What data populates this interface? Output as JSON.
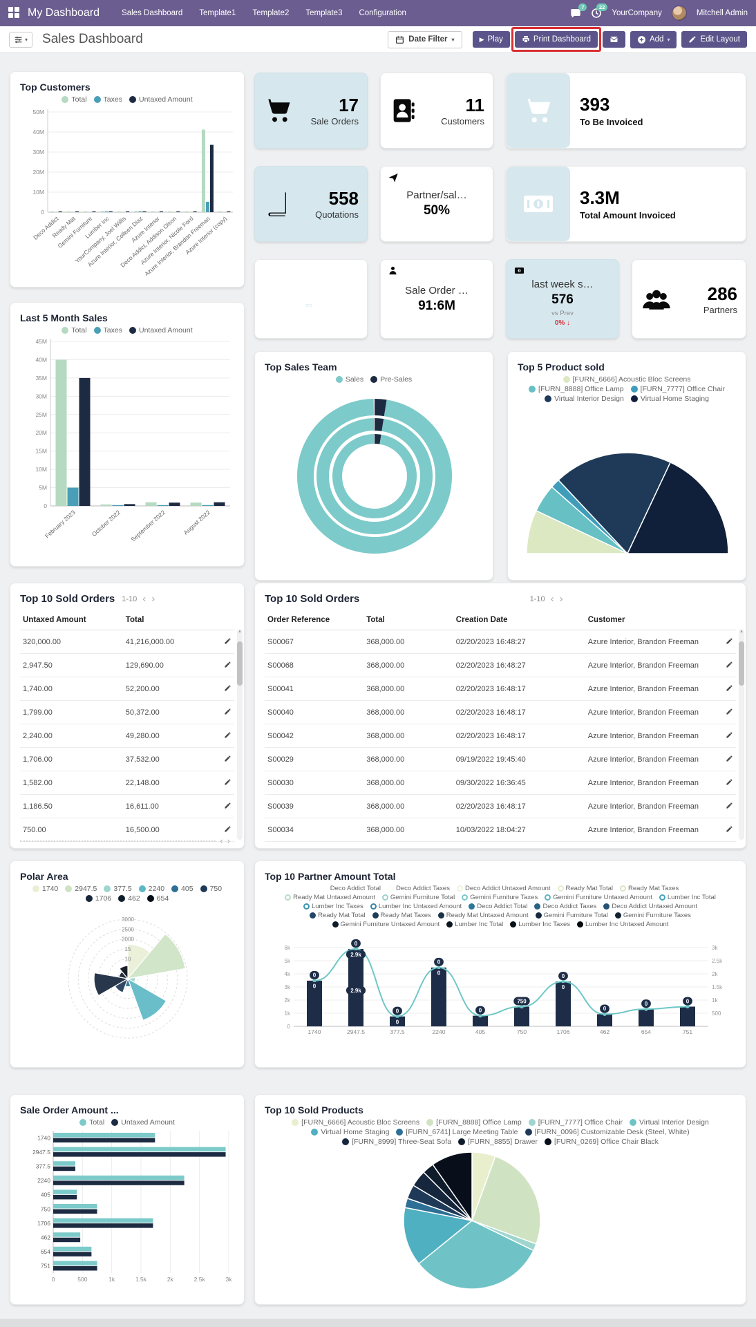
{
  "navbar": {
    "app_title": "My Dashboard",
    "menu_items": [
      "Sales Dashboard",
      "Template1",
      "Template2",
      "Template3",
      "Configuration"
    ],
    "messages_badge": "7",
    "activities_badge": "22",
    "company": "YourCompany",
    "user": "Mitchell Admin"
  },
  "control_bar": {
    "title": "Sales Dashboard",
    "date_filter_label": "Date Filter",
    "play_label": "Play",
    "print_label": "Print Dashboard",
    "add_label": "Add",
    "edit_layout_label": "Edit Layout",
    "annotation_color": "#da2f34"
  },
  "kpis": {
    "sale_orders": {
      "value": "17",
      "label": "Sale Orders",
      "icon": "cart-icon"
    },
    "customers": {
      "value": "11",
      "label": "Customers",
      "icon": "address-book-icon"
    },
    "to_be_invoiced": {
      "value": "393",
      "label": "To Be Invoiced",
      "icon": "cart-icon"
    },
    "quotations": {
      "value": "558",
      "label": "Quotations",
      "icon": "book-icon"
    },
    "partner_ratio": {
      "title": "Partner/sal…",
      "value": "50%",
      "icon": "send-icon"
    },
    "total_invoiced": {
      "value": "3.3M",
      "label": "Total Amount Invoiced",
      "icon": "money-icon"
    },
    "sale_order_avg": {
      "title": "Sale Order …",
      "value": "91:6M",
      "icon": "person-icon"
    },
    "last_week": {
      "title": "last week s…",
      "value": "576",
      "sub": "vs Prev",
      "delta": "0%",
      "delta_dir": "down",
      "icon": "money-icon"
    },
    "partners": {
      "value": "286",
      "label": "Partners",
      "icon": "people-icon"
    }
  },
  "tables": {
    "left": {
      "title": "Top 10 Sold Orders",
      "pagination": "1-10",
      "columns": [
        "Untaxed Amount",
        "Total"
      ],
      "rows": [
        [
          "320,000.00",
          "41,216,000.00"
        ],
        [
          "2,947.50",
          "129,690.00"
        ],
        [
          "1,740.00",
          "52,200.00"
        ],
        [
          "1,799.00",
          "50,372.00"
        ],
        [
          "2,240.00",
          "49,280.00"
        ],
        [
          "1,706.00",
          "37,532.00"
        ],
        [
          "1,582.00",
          "22,148.00"
        ],
        [
          "1,186.50",
          "16,611.00"
        ],
        [
          "750.00",
          "16,500.00"
        ]
      ]
    },
    "right": {
      "title": "Top 10 Sold Orders",
      "pagination": "1-10",
      "columns": [
        "Order Reference",
        "Total",
        "Creation Date",
        "Customer"
      ],
      "rows": [
        [
          "S00067",
          "368,000.00",
          "02/20/2023 16:48:27",
          "Azure Interior, Brandon Freeman"
        ],
        [
          "S00068",
          "368,000.00",
          "02/20/2023 16:48:27",
          "Azure Interior, Brandon Freeman"
        ],
        [
          "S00041",
          "368,000.00",
          "02/20/2023 16:48:17",
          "Azure Interior, Brandon Freeman"
        ],
        [
          "S00040",
          "368,000.00",
          "02/20/2023 16:48:17",
          "Azure Interior, Brandon Freeman"
        ],
        [
          "S00042",
          "368,000.00",
          "02/20/2023 16:48:17",
          "Azure Interior, Brandon Freeman"
        ],
        [
          "S00029",
          "368,000.00",
          "09/19/2022 19:45:40",
          "Azure Interior, Brandon Freeman"
        ],
        [
          "S00030",
          "368,000.00",
          "09/30/2022 16:36:45",
          "Azure Interior, Brandon Freeman"
        ],
        [
          "S00039",
          "368,000.00",
          "02/20/2023 16:48:17",
          "Azure Interior, Brandon Freeman"
        ],
        [
          "S00034",
          "368,000.00",
          "10/03/2022 18:04:27",
          "Azure Interior, Brandon Freeman"
        ]
      ]
    }
  },
  "chart_data": {
    "top_customers": {
      "type": "bar",
      "title": "Top Customers",
      "categories": [
        "Deco Addict",
        "Ready Mat",
        "Gemini Furniture",
        "Lumber Inc",
        "YourCompany, Joel Willis",
        "Azure Interior, Colleen Diaz",
        "Azure Interior",
        "Deco Addict, Addison Olson",
        "Azure Interior, Nicole Ford",
        "Azure Interior, Brandon Freeman",
        "Azure Interior (copy)"
      ],
      "series": [
        {
          "name": "Total",
          "color": "#b5d9c1",
          "values": [
            0.2,
            0.2,
            0.3,
            0.6,
            0.2,
            0.6,
            0.2,
            0.2,
            0.3,
            41.2,
            0.2
          ]
        },
        {
          "name": "Taxes",
          "color": "#4a9fb8",
          "values": [
            0,
            0,
            0,
            0.1,
            0,
            0.1,
            0,
            0,
            0,
            5.2,
            0
          ]
        },
        {
          "name": "Untaxed Amount",
          "color": "#1d2b42",
          "values": [
            0.1,
            0.1,
            0.2,
            0.4,
            0.1,
            0.4,
            0.1,
            0.1,
            0.2,
            33.6,
            0.1
          ]
        }
      ],
      "ymax": 50,
      "yticks": [
        "0",
        "10M",
        "20M",
        "30M",
        "40M",
        "50M"
      ],
      "unit": "M"
    },
    "last_5_month_sales": {
      "type": "bar",
      "title": "Last 5 Month Sales",
      "categories": [
        "February 2023",
        "October 2022",
        "September 2022",
        "August 2022"
      ],
      "series": [
        {
          "name": "Total",
          "color": "#b5d9c1",
          "values": [
            40,
            0.4,
            1.0,
            0.9
          ]
        },
        {
          "name": "Taxes",
          "color": "#4a9fb8",
          "values": [
            5,
            0.05,
            0.15,
            0.1
          ]
        },
        {
          "name": "Untaxed Amount",
          "color": "#1d2b42",
          "values": [
            35,
            0.5,
            0.9,
            1.0
          ]
        }
      ],
      "ymax": 45,
      "yticks": [
        "0",
        "5M",
        "10M",
        "15M",
        "20M",
        "25M",
        "30M",
        "35M",
        "40M",
        "45M"
      ],
      "unit": "M"
    },
    "top_sales_team": {
      "type": "doughnut",
      "title": "Top Sales Team",
      "labels": [
        "Sales",
        "Pre-Sales"
      ],
      "values": [
        97.5,
        2.5
      ],
      "colors": [
        "#7dcaca",
        "#1d2b42"
      ]
    },
    "top_5_product_sold": {
      "type": "pie-half",
      "title": "Top 5 Product sold",
      "labels": [
        "[FURN_6666] Acoustic Bloc Screens",
        "[FURN_8888] Office Lamp",
        "[FURN_7777] Office Chair",
        "Virtual Interior Design",
        "Virtual Home Staging"
      ],
      "values": [
        14,
        9,
        3,
        38,
        36
      ],
      "colors": [
        "#dce8c2",
        "#66c0c4",
        "#3f9dba",
        "#1f3a58",
        "#10203a"
      ]
    },
    "polar_area": {
      "type": "polarArea",
      "title": "Polar Area",
      "labels": [
        "1740",
        "2947.5",
        "377.5",
        "2240",
        "405",
        "750",
        "1706",
        "462",
        "654"
      ],
      "values": [
        1740,
        2947.5,
        377.5,
        2240,
        405,
        750,
        1706,
        462,
        654
      ],
      "colors": [
        "#e9efd5",
        "#cde3c4",
        "#9ed5cf",
        "#5cb8c6",
        "#2d6f95",
        "#1f3a58",
        "#16263c",
        "#0f1c2c",
        "#070d16"
      ],
      "rmax": 3000,
      "rticks": [
        "3000",
        "2500",
        "2000",
        "15",
        "10"
      ]
    },
    "partner_amount_total": {
      "type": "combo",
      "title": "Top 10 Partner Amount Total",
      "categories": [
        "1740",
        "2947.5",
        "377.5",
        "2240",
        "405",
        "750",
        "1706",
        "462",
        "654",
        "751"
      ],
      "bars": {
        "color": "#1e2d47",
        "values": [
          3480,
          5895,
          755,
          4480,
          810,
          1500,
          3412,
          924,
          1308,
          1502
        ]
      },
      "line": {
        "color": "#6fc7c7",
        "values": [
          1740,
          2947.5,
          377.5,
          2240,
          405,
          750,
          1706,
          462,
          654,
          751
        ]
      },
      "bar_labels": [
        [
          "0",
          "0"
        ],
        [
          "0",
          "2.9k",
          "2.9k"
        ],
        [
          "0",
          "0"
        ],
        [
          "0",
          "0"
        ],
        [
          "0"
        ],
        [
          "750"
        ],
        [
          "0",
          "0"
        ],
        [
          "0"
        ],
        [
          "0"
        ],
        [
          "0"
        ]
      ],
      "left_max": 6000,
      "left_ticks": [
        {
          "v": 0,
          "l": "0"
        },
        {
          "v": 1000,
          "l": "1k"
        },
        {
          "v": 2000,
          "l": "2k"
        },
        {
          "v": 3000,
          "l": "3k"
        },
        {
          "v": 4000,
          "l": "4k"
        },
        {
          "v": 5000,
          "l": "5k"
        },
        {
          "v": 6000,
          "l": "6k"
        }
      ],
      "right_max": 3000,
      "right_ticks": [
        {
          "v": 500,
          "l": "500"
        },
        {
          "v": 1000,
          "l": "1k"
        },
        {
          "v": 1500,
          "l": "1.5k"
        },
        {
          "v": 2000,
          "l": "2k"
        },
        {
          "v": 2500,
          "l": "2.5k"
        },
        {
          "v": 3000,
          "l": "3k"
        }
      ],
      "legend": [
        {
          "label": "Deco Addict Total",
          "color": "#ffffff",
          "style": "none"
        },
        {
          "label": "Deco Addict Taxes",
          "color": "#fbfdf6",
          "style": "none"
        },
        {
          "label": "Deco Addict Untaxed Amount",
          "color": "#eef3d9",
          "style": "ring"
        },
        {
          "label": "Ready Mat Total",
          "color": "#e3ecce",
          "style": "ring"
        },
        {
          "label": "Ready Mat Taxes",
          "color": "#d6e5c6",
          "style": "ring"
        },
        {
          "label": "Ready Mat Untaxed Amount",
          "color": "#b9dcc6",
          "style": "ring"
        },
        {
          "label": "Gemini Furniture Total",
          "color": "#9bd3cd",
          "style": "ring"
        },
        {
          "label": "Gemini Furniture Taxes",
          "color": "#7cc7c8",
          "style": "ring"
        },
        {
          "label": "Gemini Furniture Untaxed Amount",
          "color": "#5eb5c4",
          "style": "ring"
        },
        {
          "label": "Lumber Inc Total",
          "color": "#47a3bb",
          "style": "ring"
        },
        {
          "label": "Lumber Inc Taxes",
          "color": "#3b94b1",
          "style": "ring"
        },
        {
          "label": "Lumber Inc Untaxed Amount",
          "color": "#3386a7",
          "style": "ring"
        },
        {
          "label": "Deco Addict Total",
          "color": "#2d7697",
          "style": "fill"
        },
        {
          "label": "Deco Addict Taxes",
          "color": "#296487",
          "style": "fill"
        },
        {
          "label": "Deco Addict Untaxed Amount",
          "color": "#255377",
          "style": "fill"
        },
        {
          "label": "Ready Mat Total",
          "color": "#214667",
          "style": "fill"
        },
        {
          "label": "Ready Mat Taxes",
          "color": "#1d3c58",
          "style": "fill"
        },
        {
          "label": "Ready Mat Untaxed Amount",
          "color": "#1a334b",
          "style": "fill"
        },
        {
          "label": "Gemini Furniture Total",
          "color": "#162a3f",
          "style": "fill"
        },
        {
          "label": "Gemini Furniture Taxes",
          "color": "#122233",
          "style": "fill"
        },
        {
          "label": "Gemini Furniture Untaxed Amount",
          "color": "#0f1c29",
          "style": "fill"
        },
        {
          "label": "Lumber Inc Total",
          "color": "#0b1520",
          "style": "fill"
        },
        {
          "label": "Lumber Inc Taxes",
          "color": "#081018",
          "style": "fill"
        },
        {
          "label": "Lumber Inc Untaxed Amount",
          "color": "#050a10",
          "style": "fill"
        }
      ]
    },
    "sale_order_amount": {
      "type": "hbar",
      "title": "Sale Order Amount ...",
      "categories": [
        "1740",
        "2947.5",
        "377.5",
        "2240",
        "405",
        "750",
        "1706",
        "462",
        "654",
        "751"
      ],
      "series": [
        {
          "name": "Total",
          "color": "#7dcaca",
          "values": [
            1740,
            2947.5,
            377.5,
            2240,
            405,
            750,
            1706,
            462,
            654,
            751
          ]
        },
        {
          "name": "Untaxed Amount",
          "color": "#1d2b42",
          "values": [
            1740,
            2947.5,
            377.5,
            2240,
            405,
            750,
            1706,
            462,
            654,
            751
          ]
        }
      ],
      "xmax": 3000,
      "xticks": [
        {
          "v": 0,
          "l": "0"
        },
        {
          "v": 500,
          "l": "500"
        },
        {
          "v": 1000,
          "l": "1k"
        },
        {
          "v": 1500,
          "l": "1.5k"
        },
        {
          "v": 2000,
          "l": "2k"
        },
        {
          "v": 2500,
          "l": "2.5k"
        },
        {
          "v": 3000,
          "l": "3k"
        }
      ]
    },
    "top_10_sold_products": {
      "type": "pie",
      "title": "Top 10 Sold Products",
      "labels": [
        "[FURN_6666] Acoustic Bloc Screens",
        "[FURN_8888] Office Lamp",
        "[FURN_7777] Office Chair",
        "Virtual Interior Design",
        "Virtual Home Staging",
        "[FURN_6741] Large Meeting Table",
        "[FURN_0096] Customizable Desk (Steel, White)",
        "[FURN_8999] Three-Seat Sofa",
        "[FURN_8855] Drawer",
        "[FURN_0269] Office Chair Black"
      ],
      "values": [
        20,
        90,
        6,
        115,
        50,
        8,
        12,
        14,
        10,
        35
      ],
      "colors": [
        "#e9efcd",
        "#cfe3c3",
        "#9ed5cf",
        "#6fc3c6",
        "#4fb0c2",
        "#2d6f95",
        "#1f3a58",
        "#16263c",
        "#0f1c2c",
        "#080f1a"
      ]
    }
  }
}
